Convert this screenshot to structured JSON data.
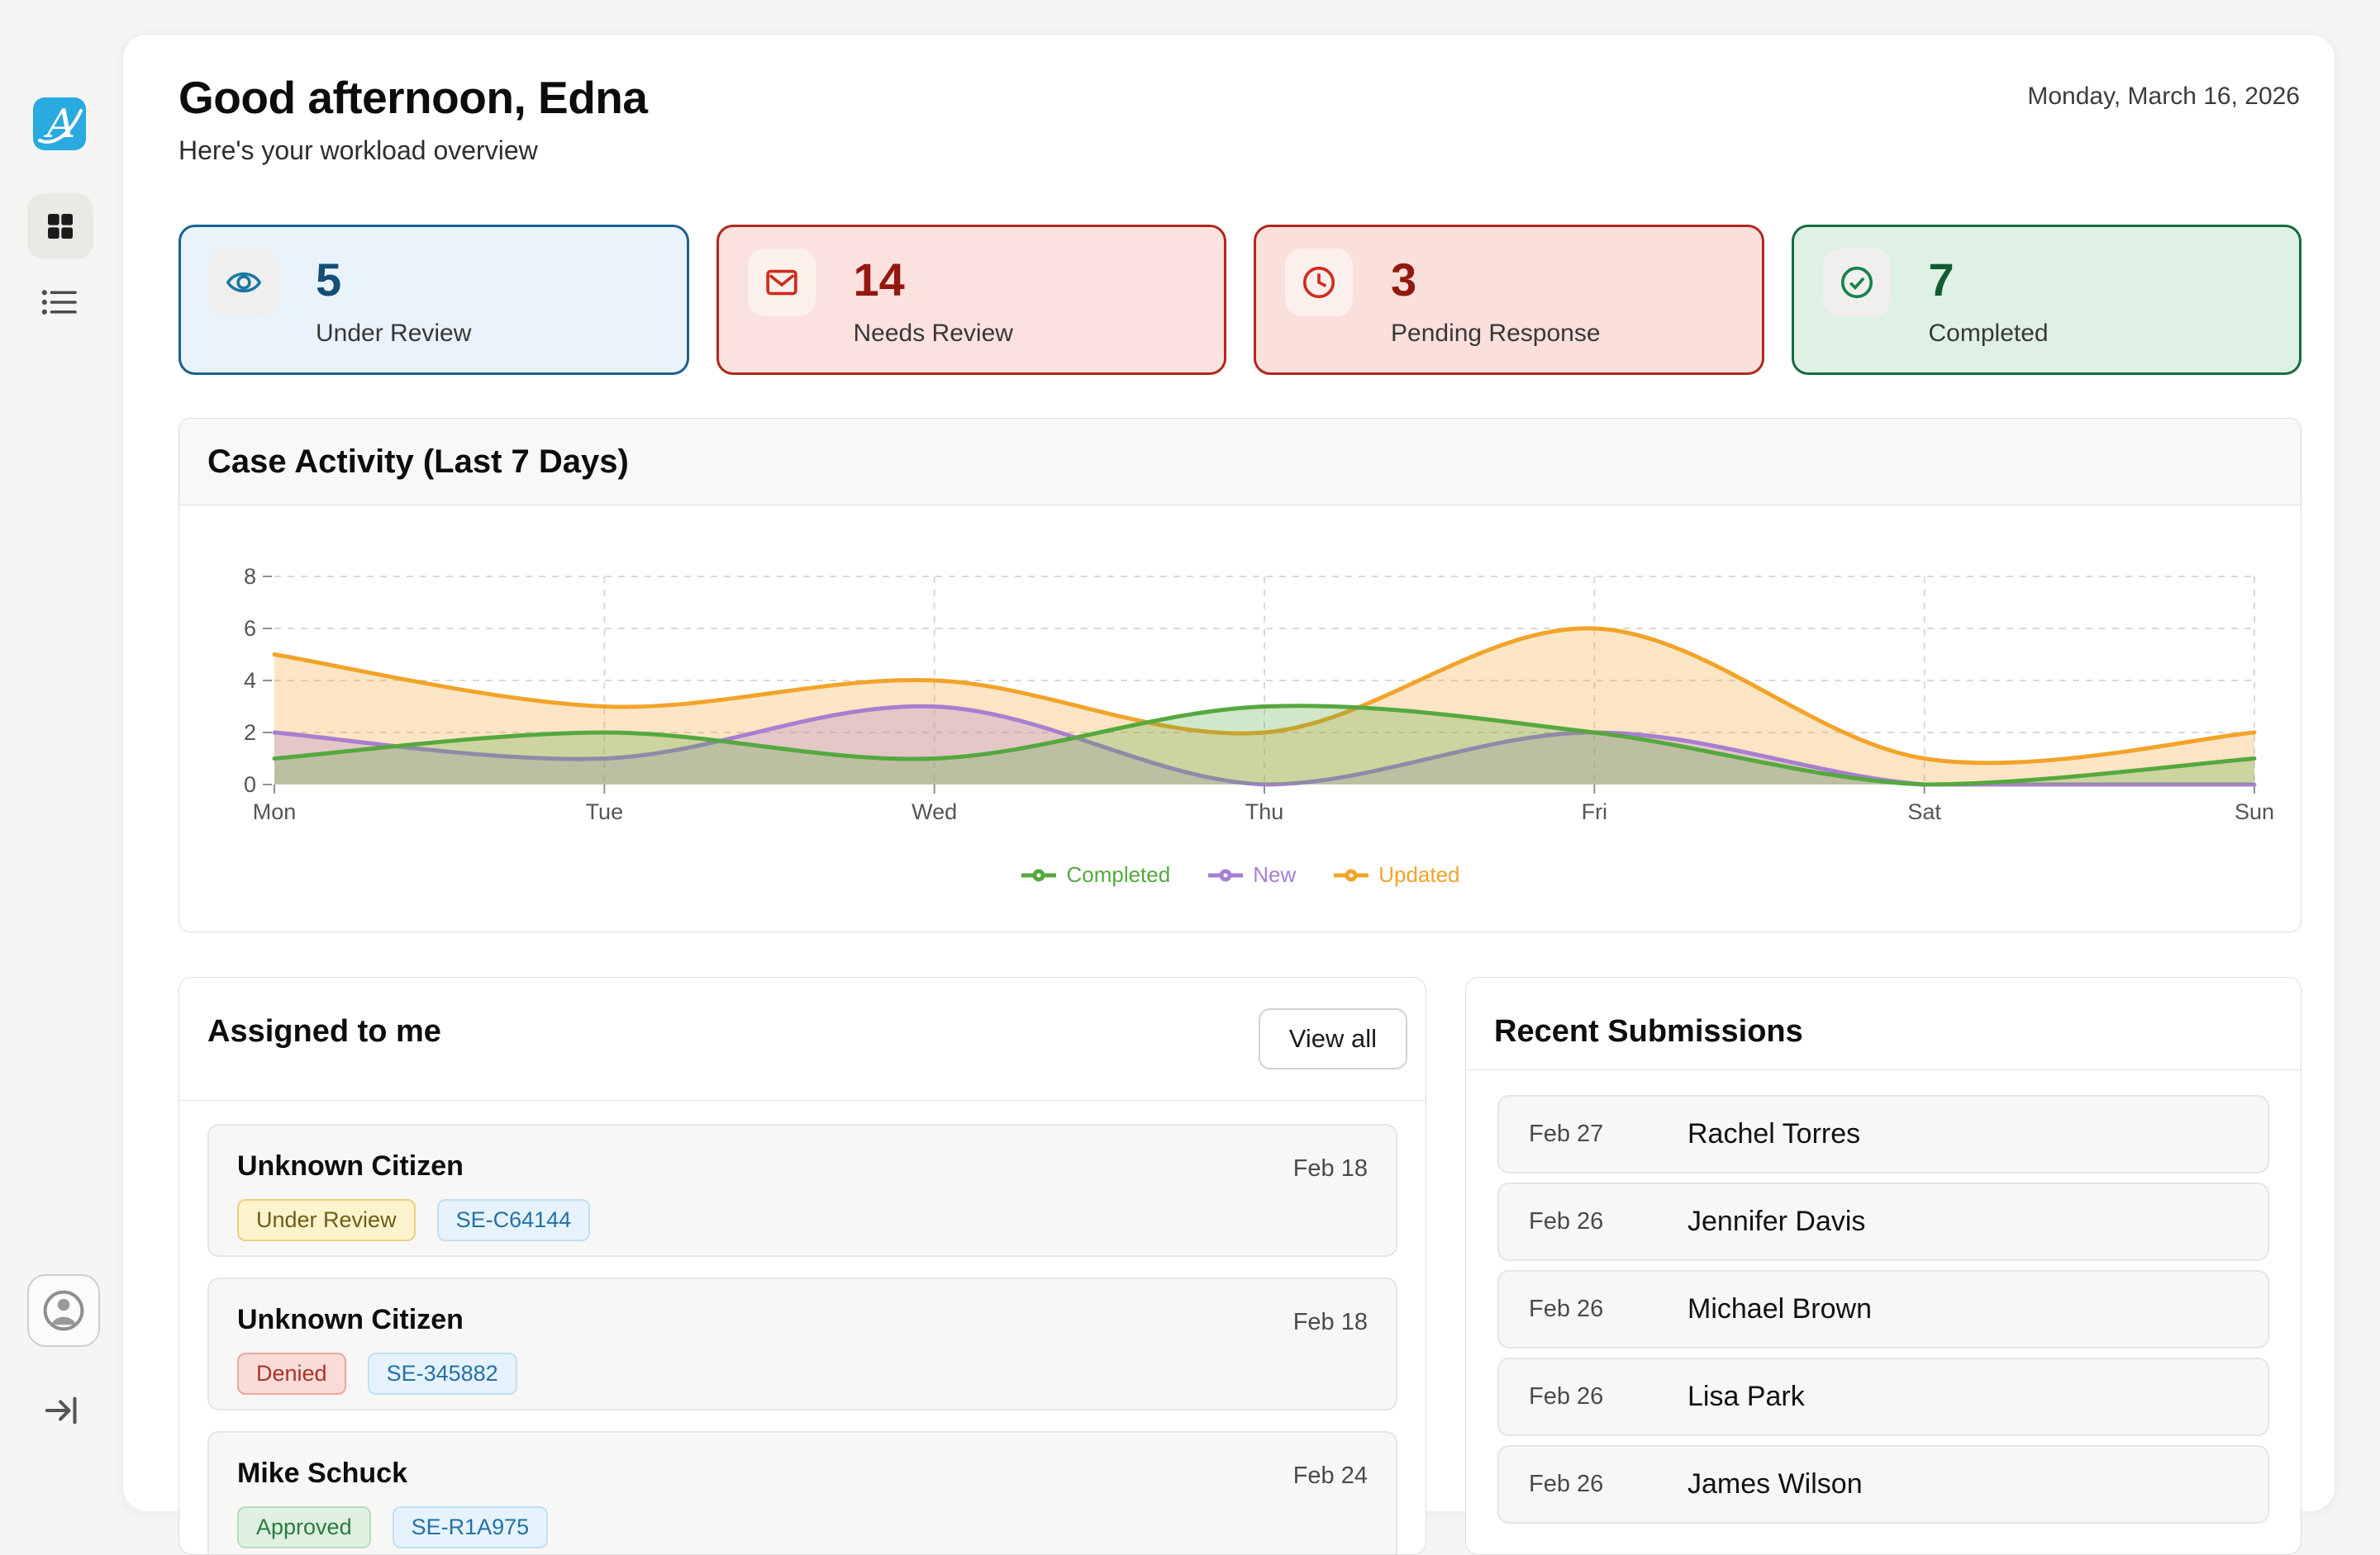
{
  "page": {
    "date": "Monday, March 16, 2026"
  },
  "header": {
    "greeting": "Good afternoon, Edna",
    "subtitle": "Here's your workload overview"
  },
  "stats": {
    "cards": [
      {
        "value": "5",
        "label": "Under Review",
        "icon": "eye-icon",
        "bg": "#e9f3fb",
        "border": "#1a6191",
        "number_color": "#134e77",
        "icon_color": "#1a77a6",
        "chip_bg": "#f0efed"
      },
      {
        "value": "14",
        "label": "Needs Review",
        "icon": "mail-icon",
        "bg": "#fbe2de",
        "border": "#ae281c",
        "number_color": "#93180f",
        "icon_color": "#d02b1c",
        "chip_bg": "#fcf0ed"
      },
      {
        "value": "3",
        "label": "Pending Response",
        "icon": "clock-icon",
        "bg": "#fbdfdb",
        "border": "#ae281c",
        "number_color": "#93180f",
        "icon_color": "#d02b1c",
        "chip_bg": "#fcf0ed"
      },
      {
        "value": "7",
        "label": "Completed",
        "icon": "check-circle-icon",
        "bg": "#def1e4",
        "border": "#156c3f",
        "number_color": "#115c34",
        "icon_color": "#17814b",
        "chip_bg": "#f0efed"
      }
    ]
  },
  "chart_card": {
    "title": "Case Activity (Last 7 Days)"
  },
  "chart_data": {
    "type": "area",
    "x": [
      "Mon",
      "Tue",
      "Wed",
      "Thu",
      "Fri",
      "Sat",
      "Sun"
    ],
    "series": [
      {
        "name": "Completed",
        "color": "#55a83f",
        "values": [
          1,
          2,
          1,
          3,
          2,
          0,
          1
        ]
      },
      {
        "name": "New",
        "color": "#a77fd0",
        "values": [
          2,
          1,
          3,
          0,
          2,
          0,
          0
        ]
      },
      {
        "name": "Updated",
        "color": "#f2a32a",
        "values": [
          5,
          3,
          4,
          2,
          6,
          1,
          2
        ]
      }
    ],
    "ylim": [
      0,
      8
    ],
    "yticks": [
      0,
      2,
      4,
      6,
      8
    ],
    "grid": true,
    "legend_position": "bottom"
  },
  "assigned": {
    "title": "Assigned to me",
    "view_all_label": "View all",
    "items": [
      {
        "name": "Unknown Citizen",
        "date": "Feb 18",
        "status": "Under Review",
        "case_id": "SE-C64144"
      },
      {
        "name": "Unknown Citizen",
        "date": "Feb 18",
        "status": "Denied",
        "case_id": "SE-345882"
      },
      {
        "name": "Mike Schuck",
        "date": "Feb 24",
        "status": "Approved",
        "case_id": "SE-R1A975"
      }
    ]
  },
  "submissions": {
    "title": "Recent Submissions",
    "items": [
      {
        "date": "Feb 27",
        "name": "Rachel Torres"
      },
      {
        "date": "Feb 26",
        "name": "Jennifer Davis"
      },
      {
        "date": "Feb 26",
        "name": "Michael Brown"
      },
      {
        "date": "Feb 26",
        "name": "Lisa Park"
      },
      {
        "date": "Feb 26",
        "name": "James Wilson"
      }
    ]
  }
}
